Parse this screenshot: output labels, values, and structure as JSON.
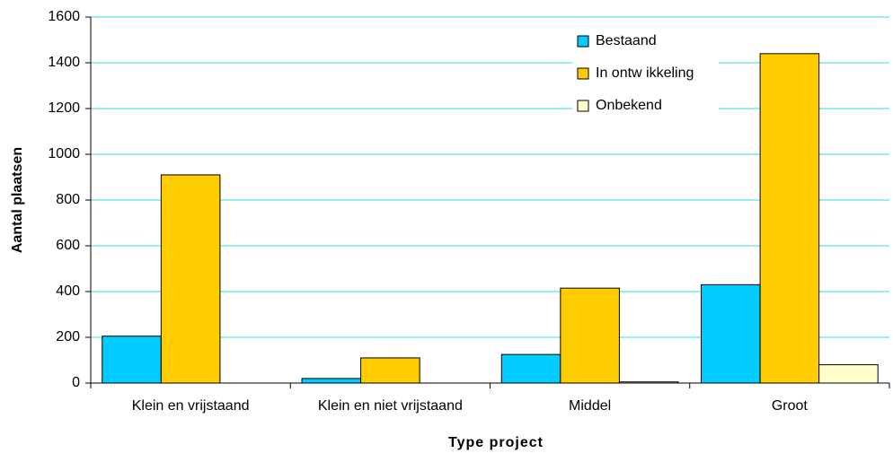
{
  "chart_data": {
    "type": "bar",
    "xlabel": "Type project",
    "ylabel": "Aantal plaatsen",
    "categories": [
      "Klein en vrijstaand",
      "Klein en niet vrijstaand",
      "Middel",
      "Groot"
    ],
    "series": [
      {
        "name": "Bestaand",
        "color": "#00ccff",
        "values": [
          205,
          20,
          125,
          430
        ]
      },
      {
        "name": "In ontw ikkeling",
        "color": "#ffcc00",
        "values": [
          910,
          110,
          415,
          1440
        ]
      },
      {
        "name": "Onbekend",
        "color": "#ffffcc",
        "values": [
          0,
          0,
          5,
          80
        ]
      }
    ],
    "ylim": [
      0,
      1600
    ],
    "yticks": [
      0,
      200,
      400,
      600,
      800,
      1000,
      1200,
      1400,
      1600
    ],
    "grid": true,
    "legend": "upper right"
  }
}
